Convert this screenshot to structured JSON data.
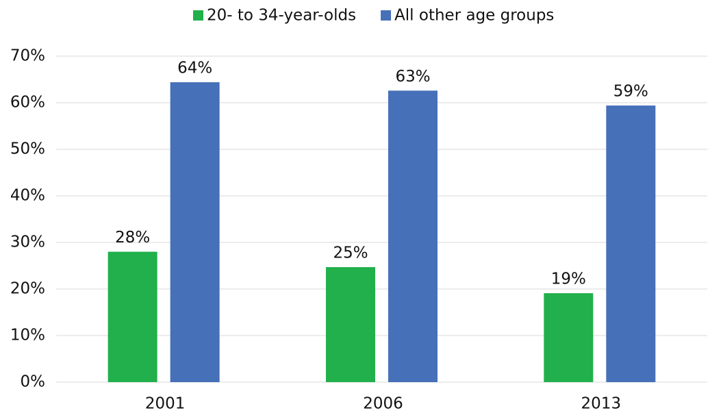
{
  "chart_data": {
    "type": "bar",
    "categories": [
      "2001",
      "2006",
      "2013"
    ],
    "series": [
      {
        "name": "20- to 34-year-olds",
        "color": "#21b04b",
        "values": [
          28,
          24.7,
          19.1
        ],
        "value_labels": [
          "28%",
          "25%",
          "19%"
        ]
      },
      {
        "name": "All other age groups",
        "color": "#4670b8",
        "values": [
          64.4,
          62.6,
          59.4
        ],
        "value_labels": [
          "64%",
          "63%",
          "59%"
        ]
      }
    ],
    "ylim": [
      0,
      70
    ],
    "yticks": [
      {
        "value": 0,
        "label": "0%"
      },
      {
        "value": 10,
        "label": "10%"
      },
      {
        "value": 20,
        "label": "20%"
      },
      {
        "value": 30,
        "label": "30%"
      },
      {
        "value": 40,
        "label": "40%"
      },
      {
        "value": 50,
        "label": "50%"
      },
      {
        "value": 60,
        "label": "60%"
      },
      {
        "value": 70,
        "label": "70%"
      }
    ],
    "grid": true,
    "legend": "top"
  }
}
